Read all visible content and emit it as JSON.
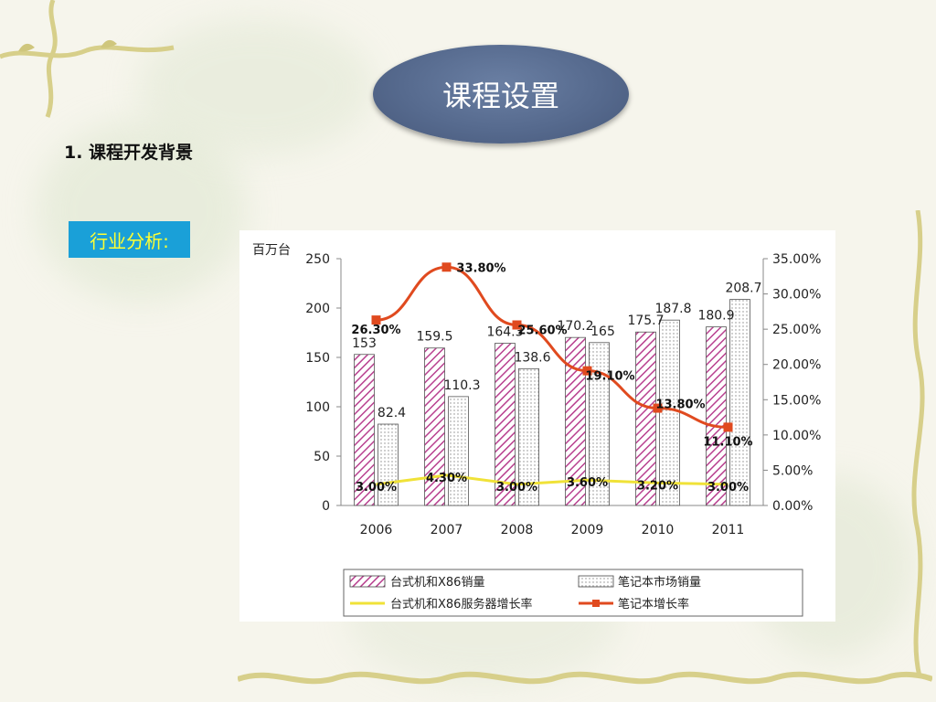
{
  "slide": {
    "title": "课程设置",
    "section_heading": "1. 课程开发背景",
    "badge": "行业分析:"
  },
  "colors": {
    "desktop_bar": "#b8408f",
    "notebook_bar": "#7a7a7a",
    "notebook_growth": "#e04a1f",
    "desktop_growth": "#f0e238",
    "title_oval": "#566a8e",
    "badge_bg": "#1aa0d8",
    "badge_text": "#ffff33"
  },
  "chart_data": {
    "type": "bar",
    "categories": [
      "2006",
      "2007",
      "2008",
      "2009",
      "2010",
      "2011"
    ],
    "y_unit_label": "百万台",
    "ylim": [
      0,
      250
    ],
    "yticks": [
      "0",
      "50",
      "100",
      "150",
      "200",
      "250"
    ],
    "y2lim": [
      0,
      35
    ],
    "y2ticks": [
      "0.00%",
      "5.00%",
      "10.00%",
      "15.00%",
      "20.00%",
      "25.00%",
      "30.00%",
      "35.00%"
    ],
    "series": [
      {
        "name": "台式机和X86销量",
        "kind": "bar",
        "values": [
          153,
          159.5,
          164.3,
          170.2,
          175.7,
          180.9
        ],
        "labels": [
          "153",
          "159.5",
          "164.3",
          "170.2",
          "175.7",
          "180.9"
        ]
      },
      {
        "name": "笔记本市场销量",
        "kind": "bar",
        "values": [
          82.4,
          110.3,
          138.6,
          165,
          187.8,
          208.7
        ],
        "labels": [
          "82.4",
          "110.3",
          "138.6",
          "165",
          "187.8",
          "208.7"
        ]
      },
      {
        "name": "台式机和X86服务器增长率",
        "kind": "line",
        "axis": "right",
        "values": [
          3.0,
          4.3,
          3.0,
          3.6,
          3.2,
          3.0
        ],
        "labels": [
          "3.00%",
          "4.30%",
          "3.00%",
          "3.60%",
          "3.20%",
          "3.00%"
        ]
      },
      {
        "name": "笔记本增长率",
        "kind": "line",
        "axis": "right",
        "values": [
          26.3,
          33.8,
          25.6,
          19.1,
          13.8,
          11.1
        ],
        "labels": [
          "26.30%",
          "33.80%",
          "25.60%",
          "19.10%",
          "13.80%",
          "11.10%"
        ]
      }
    ],
    "legend_position": "bottom"
  }
}
